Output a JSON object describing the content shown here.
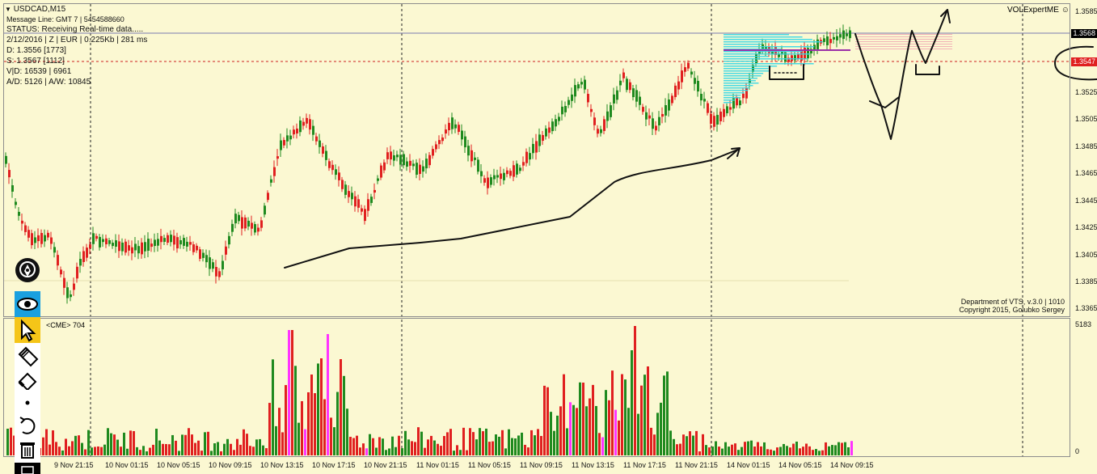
{
  "chart": {
    "symbol": "USDCAD,M15",
    "message_line": "Message Line: GMT 7 | 5454588660",
    "status": "STATUS:  Receiving Real-time data.....",
    "info_line": "2/12/2016 | Z | EUR | 0.225Kb | 281 ms",
    "d_line": "D: 1.3556  [1773]",
    "s_line": "S: 1.3567  [1112]",
    "vd_line": "V|D: 16539 | 6961",
    "ad_line": "A/D: 5126 | A/W: 10845",
    "expert": "VOLExpertME",
    "credits_1": "Department of VTS, v.3.0 | 1010",
    "credits_2": "Copyright 2015, Golubko Sergey",
    "price_current": "1.3568",
    "price_marker": "1.3547",
    "price_axis": [
      "1.3585",
      "1.3525",
      "1.3505",
      "1.3485",
      "1.3465",
      "1.3445",
      "1.3425",
      "1.3405",
      "1.3385",
      "1.3365"
    ],
    "volume_header": "<CME> 704",
    "volume_max": "5183",
    "volume_min": "0",
    "time_axis": [
      "9 Nov 21:15",
      "10 Nov 01:15",
      "10 Nov 05:15",
      "10 Nov 09:15",
      "10 Nov 13:15",
      "10 Nov 17:15",
      "10 Nov 21:15",
      "11 Nov 01:15",
      "11 Nov 05:15",
      "11 Nov 09:15",
      "11 Nov 13:15",
      "11 Nov 17:15",
      "11 Nov 21:15",
      "14 Nov 01:15",
      "14 Nov 05:15",
      "14 Nov 09:15"
    ]
  },
  "colors": {
    "background": "#fbf8d2",
    "bull": "#1f8a1f",
    "bear": "#e02020",
    "spike": "#ff33ff",
    "marker": "#e02020"
  },
  "toolbar": {
    "icons": [
      "pen-nib-icon",
      "eye-icon",
      "cursor-icon",
      "pencil-icon",
      "eraser-icon",
      "dot-icon",
      "undo-icon",
      "trash-icon"
    ]
  }
}
